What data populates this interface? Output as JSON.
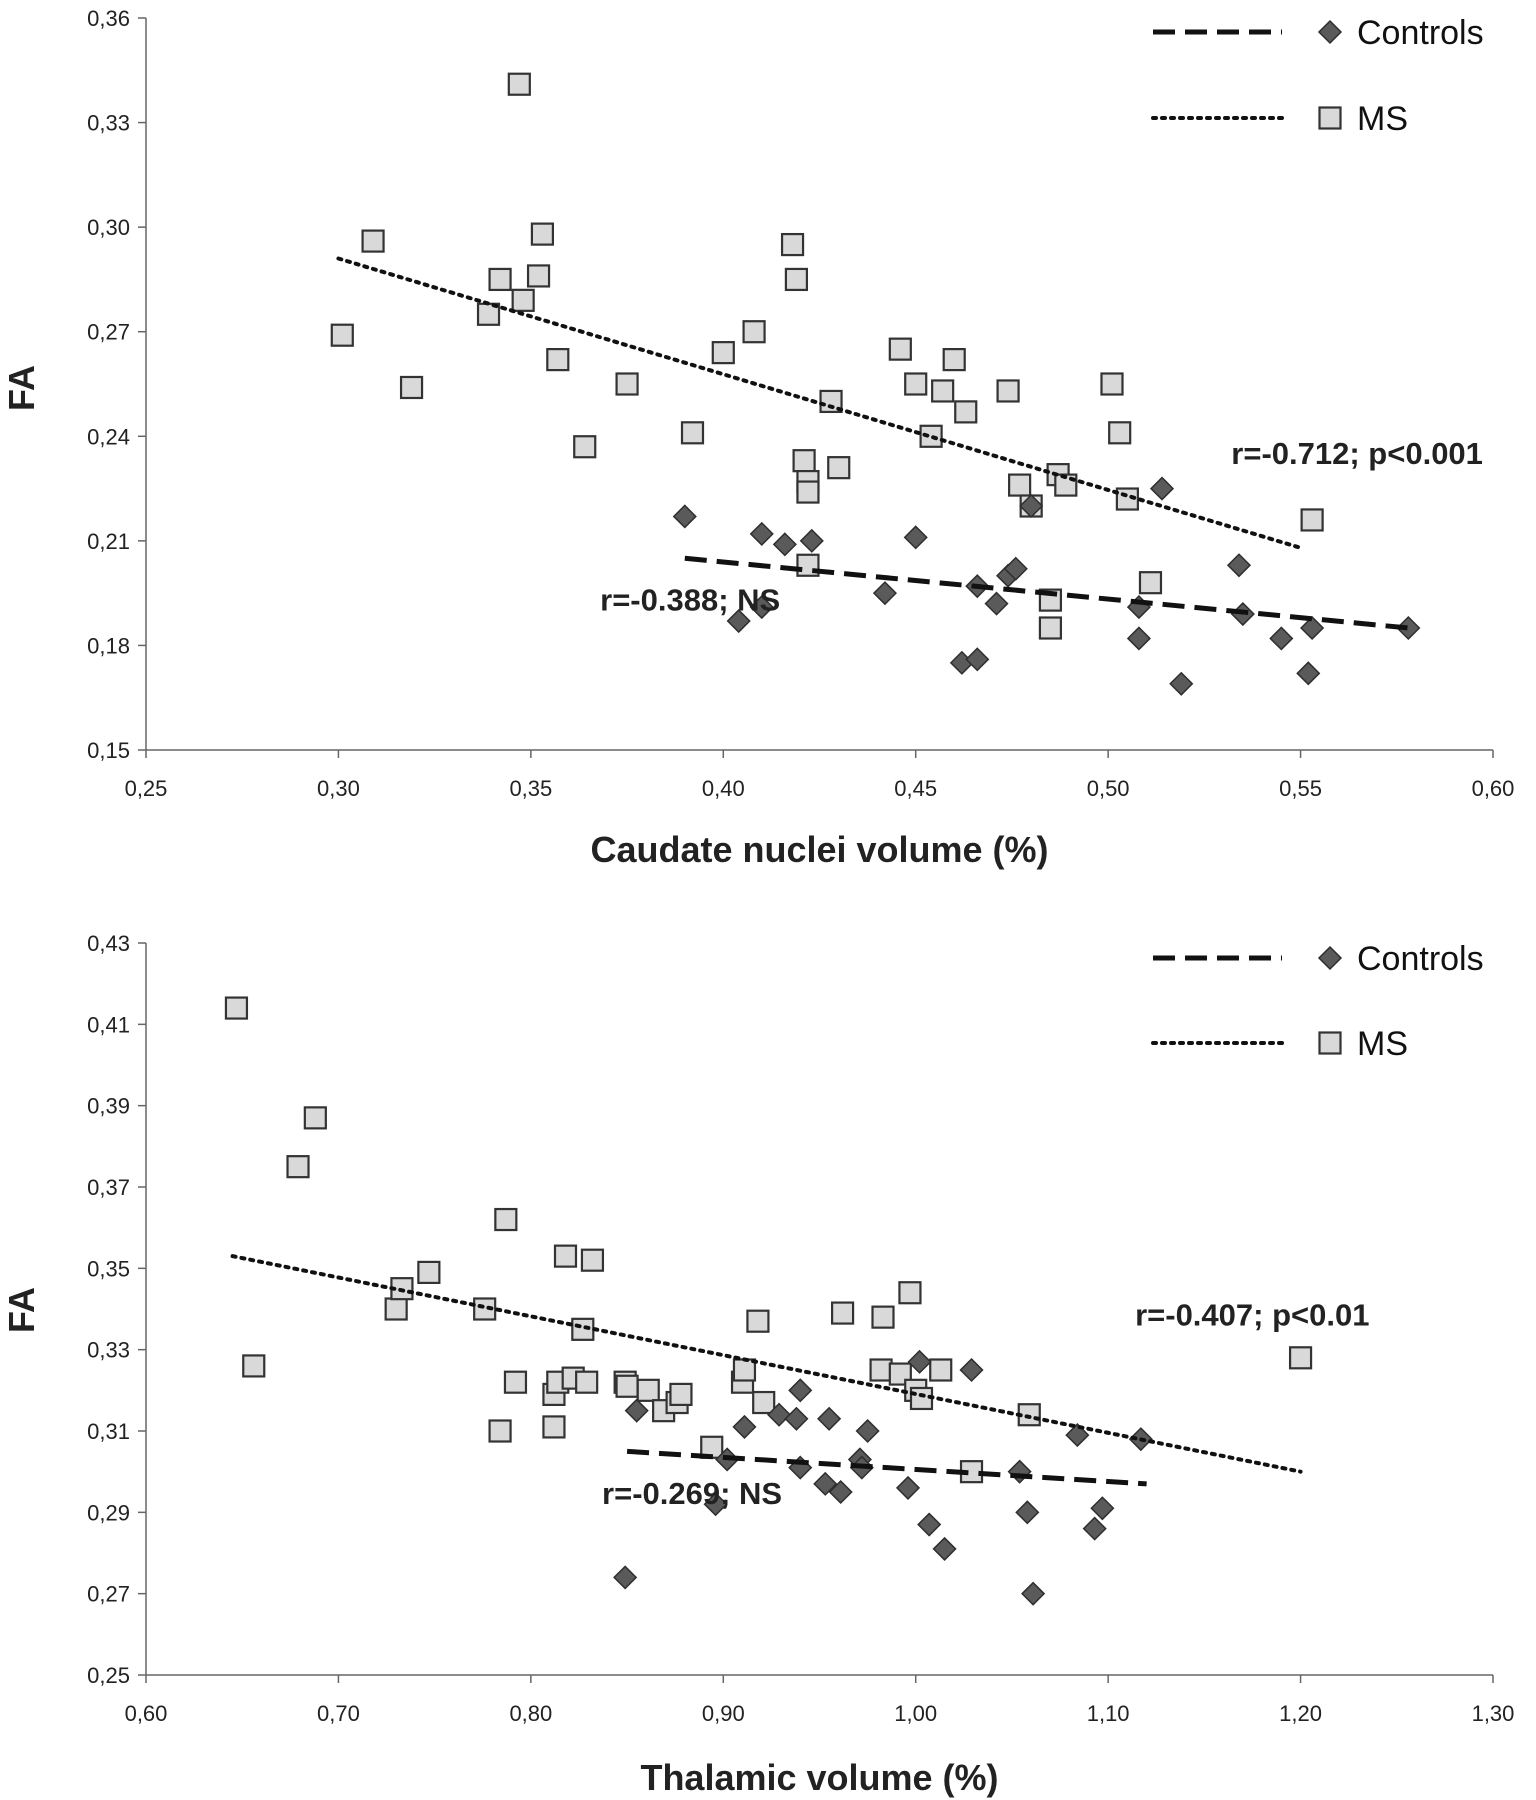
{
  "chart_data": [
    {
      "type": "scatter",
      "title": "",
      "xlabel": "Caudate nuclei volume (%)",
      "ylabel": "FA",
      "xlim": [
        0.25,
        0.6
      ],
      "ylim": [
        0.15,
        0.36
      ],
      "x_ticks": [
        "0,25",
        "0,30",
        "0,35",
        "0,40",
        "0,45",
        "0,50",
        "0,55",
        "0,60"
      ],
      "y_ticks": [
        "0,15",
        "0,18",
        "0,21",
        "0,24",
        "0,27",
        "0,30",
        "0,33",
        "0,36"
      ],
      "grid": false,
      "legend_position": "top-right",
      "series": [
        {
          "name": "Controls",
          "marker": "diamond",
          "color": "#5a5a5a",
          "trendline": "dashed",
          "trendline_range": [
            [
              0.39,
              0.205
            ],
            [
              0.578,
              0.185
            ]
          ],
          "points": [
            [
              0.39,
              0.217
            ],
            [
              0.404,
              0.187
            ],
            [
              0.41,
              0.212
            ],
            [
              0.41,
              0.191
            ],
            [
              0.416,
              0.209
            ],
            [
              0.423,
              0.21
            ],
            [
              0.442,
              0.195
            ],
            [
              0.45,
              0.211
            ],
            [
              0.462,
              0.175
            ],
            [
              0.466,
              0.176
            ],
            [
              0.466,
              0.197
            ],
            [
              0.471,
              0.192
            ],
            [
              0.474,
              0.2
            ],
            [
              0.476,
              0.202
            ],
            [
              0.48,
              0.22
            ],
            [
              0.508,
              0.191
            ],
            [
              0.508,
              0.182
            ],
            [
              0.514,
              0.225
            ],
            [
              0.519,
              0.169
            ],
            [
              0.534,
              0.203
            ],
            [
              0.535,
              0.189
            ],
            [
              0.545,
              0.182
            ],
            [
              0.552,
              0.172
            ],
            [
              0.553,
              0.185
            ],
            [
              0.578,
              0.185
            ]
          ]
        },
        {
          "name": "MS",
          "marker": "square",
          "color": "#d9d9d9",
          "trendline": "dotted",
          "trendline_range": [
            [
              0.3,
              0.291
            ],
            [
              0.55,
              0.208
            ]
          ],
          "points": [
            [
              0.301,
              0.269
            ],
            [
              0.309,
              0.296
            ],
            [
              0.319,
              0.254
            ],
            [
              0.339,
              0.275
            ],
            [
              0.342,
              0.285
            ],
            [
              0.347,
              0.341
            ],
            [
              0.348,
              0.279
            ],
            [
              0.352,
              0.286
            ],
            [
              0.353,
              0.298
            ],
            [
              0.357,
              0.262
            ],
            [
              0.364,
              0.237
            ],
            [
              0.375,
              0.255
            ],
            [
              0.392,
              0.241
            ],
            [
              0.4,
              0.264
            ],
            [
              0.408,
              0.27
            ],
            [
              0.418,
              0.295
            ],
            [
              0.419,
              0.285
            ],
            [
              0.421,
              0.233
            ],
            [
              0.422,
              0.227
            ],
            [
              0.422,
              0.224
            ],
            [
              0.422,
              0.203
            ],
            [
              0.428,
              0.25
            ],
            [
              0.43,
              0.231
            ],
            [
              0.446,
              0.265
            ],
            [
              0.45,
              0.255
            ],
            [
              0.454,
              0.24
            ],
            [
              0.457,
              0.253
            ],
            [
              0.46,
              0.262
            ],
            [
              0.463,
              0.247
            ],
            [
              0.474,
              0.253
            ],
            [
              0.477,
              0.226
            ],
            [
              0.48,
              0.22
            ],
            [
              0.485,
              0.193
            ],
            [
              0.485,
              0.185
            ],
            [
              0.487,
              0.229
            ],
            [
              0.489,
              0.226
            ],
            [
              0.501,
              0.255
            ],
            [
              0.503,
              0.241
            ],
            [
              0.505,
              0.222
            ],
            [
              0.511,
              0.198
            ],
            [
              0.553,
              0.216
            ]
          ]
        }
      ],
      "annotations": [
        {
          "text": "r=-0.712; p<0.001",
          "x": 0.532,
          "y": 0.232
        },
        {
          "text": "r=-0.388; NS",
          "x": 0.368,
          "y": 0.19
        }
      ]
    },
    {
      "type": "scatter",
      "title": "",
      "xlabel": "Thalamic volume (%)",
      "ylabel": "FA",
      "xlim": [
        0.6,
        1.3
      ],
      "ylim": [
        0.25,
        0.43
      ],
      "x_ticks": [
        "0,60",
        "0,70",
        "0,80",
        "0,90",
        "1,00",
        "1,10",
        "1,20",
        "1,30"
      ],
      "y_ticks": [
        "0,25",
        "0,27",
        "0,29",
        "0,31",
        "0,33",
        "0,35",
        "0,37",
        "0,39",
        "0,41",
        "0,43"
      ],
      "grid": false,
      "legend_position": "top-right",
      "series": [
        {
          "name": "Controls",
          "marker": "diamond",
          "color": "#5a5a5a",
          "trendline": "dashed",
          "trendline_range": [
            [
              0.85,
              0.305
            ],
            [
              1.12,
              0.297
            ]
          ],
          "points": [
            [
              0.849,
              0.274
            ],
            [
              0.855,
              0.315
            ],
            [
              0.896,
              0.292
            ],
            [
              0.902,
              0.303
            ],
            [
              0.911,
              0.311
            ],
            [
              0.929,
              0.314
            ],
            [
              0.938,
              0.313
            ],
            [
              0.94,
              0.32
            ],
            [
              0.94,
              0.301
            ],
            [
              0.953,
              0.297
            ],
            [
              0.955,
              0.313
            ],
            [
              0.961,
              0.295
            ],
            [
              0.971,
              0.303
            ],
            [
              0.972,
              0.301
            ],
            [
              0.975,
              0.31
            ],
            [
              0.996,
              0.296
            ],
            [
              1.002,
              0.327
            ],
            [
              1.007,
              0.287
            ],
            [
              1.015,
              0.281
            ],
            [
              1.029,
              0.325
            ],
            [
              1.054,
              0.3
            ],
            [
              1.058,
              0.29
            ],
            [
              1.061,
              0.27
            ],
            [
              1.084,
              0.309
            ],
            [
              1.093,
              0.286
            ],
            [
              1.097,
              0.291
            ],
            [
              1.117,
              0.308
            ]
          ]
        },
        {
          "name": "MS",
          "marker": "square",
          "color": "#d9d9d9",
          "trendline": "dotted",
          "trendline_range": [
            [
              0.645,
              0.353
            ],
            [
              1.2,
              0.3
            ]
          ],
          "points": [
            [
              0.647,
              0.414
            ],
            [
              0.656,
              0.326
            ],
            [
              0.679,
              0.375
            ],
            [
              0.688,
              0.387
            ],
            [
              0.73,
              0.34
            ],
            [
              0.733,
              0.345
            ],
            [
              0.747,
              0.349
            ],
            [
              0.776,
              0.34
            ],
            [
              0.784,
              0.31
            ],
            [
              0.787,
              0.362
            ],
            [
              0.792,
              0.322
            ],
            [
              0.812,
              0.319
            ],
            [
              0.812,
              0.311
            ],
            [
              0.814,
              0.322
            ],
            [
              0.818,
              0.353
            ],
            [
              0.822,
              0.323
            ],
            [
              0.827,
              0.335
            ],
            [
              0.829,
              0.322
            ],
            [
              0.832,
              0.352
            ],
            [
              0.849,
              0.322
            ],
            [
              0.85,
              0.321
            ],
            [
              0.861,
              0.32
            ],
            [
              0.869,
              0.315
            ],
            [
              0.876,
              0.317
            ],
            [
              0.878,
              0.319
            ],
            [
              0.894,
              0.306
            ],
            [
              0.91,
              0.322
            ],
            [
              0.911,
              0.325
            ],
            [
              0.918,
              0.337
            ],
            [
              0.921,
              0.317
            ],
            [
              0.962,
              0.339
            ],
            [
              0.982,
              0.325
            ],
            [
              0.983,
              0.338
            ],
            [
              0.992,
              0.324
            ],
            [
              0.997,
              0.344
            ],
            [
              1.0,
              0.32
            ],
            [
              1.003,
              0.318
            ],
            [
              1.013,
              0.325
            ],
            [
              1.029,
              0.3
            ],
            [
              1.059,
              0.314
            ],
            [
              1.2,
              0.328
            ]
          ]
        }
      ],
      "annotations": [
        {
          "text": "r=-0.407; p<0.01",
          "x": 1.114,
          "y": 0.336
        },
        {
          "text": "r=-0.269; NS",
          "x": 0.837,
          "y": 0.292
        }
      ]
    }
  ]
}
